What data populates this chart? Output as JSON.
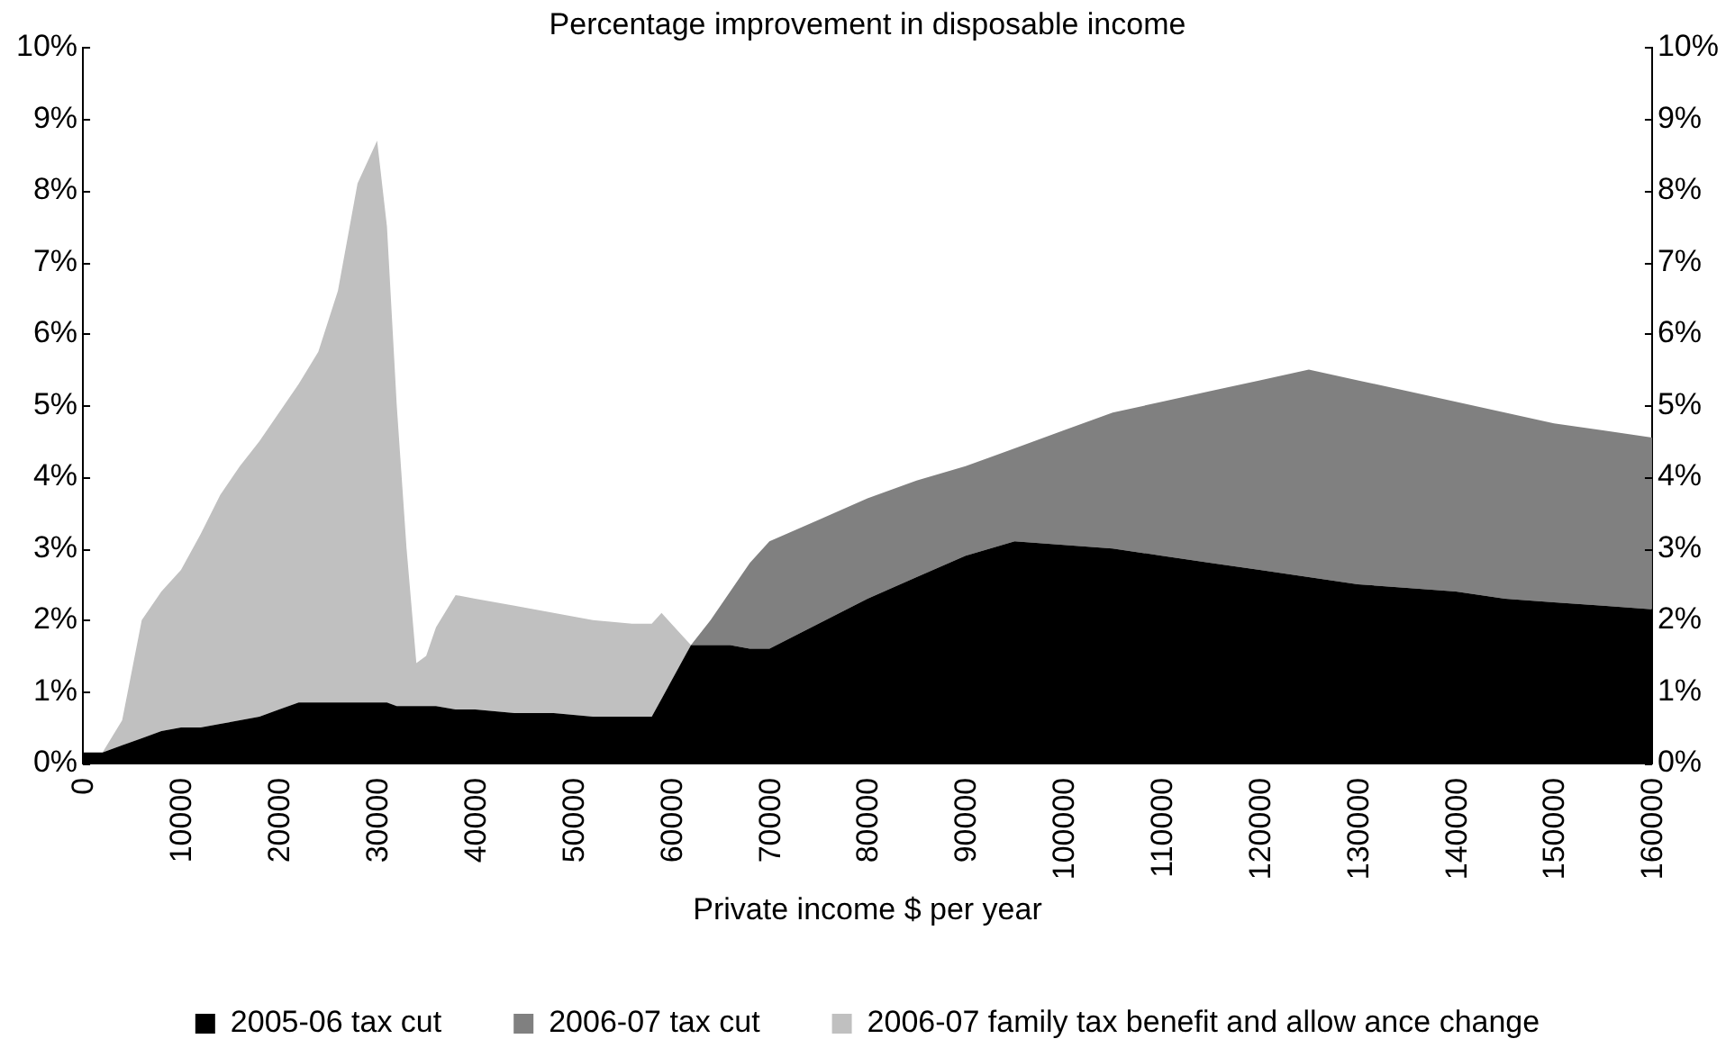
{
  "chart_data": {
    "type": "area",
    "stacked": true,
    "title": "Percentage improvement in disposable income",
    "xlabel": "Private income $ per year",
    "legend": "bottom",
    "x": [
      0,
      2000,
      4000,
      6000,
      8000,
      10000,
      12000,
      14000,
      16000,
      18000,
      20000,
      22000,
      24000,
      26000,
      28000,
      30000,
      31000,
      32000,
      33000,
      34000,
      35000,
      36000,
      38000,
      40000,
      44000,
      48000,
      52000,
      56000,
      58000,
      59000,
      60000,
      62000,
      64000,
      66000,
      68000,
      70000,
      75000,
      80000,
      85000,
      90000,
      95000,
      100000,
      105000,
      110000,
      115000,
      120000,
      125000,
      130000,
      135000,
      140000,
      145000,
      150000,
      155000,
      160000
    ],
    "series": [
      {
        "name": "2005-06 tax cut",
        "color": "#000000",
        "values": [
          0.15,
          0.15,
          0.25,
          0.35,
          0.45,
          0.5,
          0.5,
          0.55,
          0.6,
          0.65,
          0.75,
          0.85,
          0.85,
          0.85,
          0.85,
          0.85,
          0.85,
          0.8,
          0.8,
          0.8,
          0.8,
          0.8,
          0.75,
          0.75,
          0.7,
          0.7,
          0.65,
          0.65,
          0.65,
          0.9,
          1.15,
          1.65,
          1.65,
          1.65,
          1.6,
          1.6,
          1.95,
          2.3,
          2.6,
          2.9,
          3.1,
          3.05,
          3.0,
          2.9,
          2.8,
          2.7,
          2.6,
          2.5,
          2.45,
          2.4,
          2.3,
          2.25,
          2.2,
          2.15
        ]
      },
      {
        "name": "2006-07 tax cut",
        "color": "#808080",
        "values": [
          0,
          0,
          0,
          0,
          0,
          0,
          0,
          0,
          0,
          0,
          0,
          0,
          0,
          0,
          0,
          0,
          0,
          0,
          0,
          0,
          0,
          0,
          0,
          0,
          0,
          0,
          0,
          0,
          0,
          0,
          0,
          0,
          0.35,
          0.75,
          1.2,
          1.5,
          1.45,
          1.4,
          1.35,
          1.25,
          1.3,
          1.6,
          1.9,
          2.15,
          2.4,
          2.65,
          2.9,
          2.85,
          2.75,
          2.65,
          2.6,
          2.5,
          2.45,
          2.4
        ]
      },
      {
        "name": "2006-07 family tax benefit and allow ance change",
        "color": "#c0c0c0",
        "values": [
          0,
          0,
          0.35,
          1.65,
          1.95,
          2.2,
          2.7,
          3.2,
          3.55,
          3.85,
          4.15,
          4.45,
          4.9,
          5.75,
          7.25,
          7.85,
          6.65,
          4.2,
          2.2,
          0.6,
          0.7,
          1.1,
          1.6,
          1.55,
          1.5,
          1.4,
          1.35,
          1.3,
          1.3,
          1.2,
          0.8,
          0,
          null,
          null,
          null,
          null,
          null,
          null,
          null,
          null,
          null,
          null,
          null,
          null,
          null,
          null,
          null,
          null,
          null,
          null,
          null,
          null,
          null,
          null
        ]
      }
    ],
    "xlim": [
      0,
      160000
    ],
    "xticks": [
      0,
      10000,
      20000,
      30000,
      40000,
      50000,
      60000,
      70000,
      80000,
      90000,
      100000,
      110000,
      120000,
      130000,
      140000,
      150000,
      160000
    ],
    "ylim": [
      0,
      10
    ],
    "yticks": [
      {
        "value": 0,
        "label": "0%"
      },
      {
        "value": 1,
        "label": "1%"
      },
      {
        "value": 2,
        "label": "2%"
      },
      {
        "value": 3,
        "label": "3%"
      },
      {
        "value": 4,
        "label": "4%"
      },
      {
        "value": 5,
        "label": "5%"
      },
      {
        "value": 6,
        "label": "6%"
      },
      {
        "value": 7,
        "label": "7%"
      },
      {
        "value": 8,
        "label": "8%"
      },
      {
        "value": 9,
        "label": "9%"
      },
      {
        "value": 10,
        "label": "10%"
      }
    ],
    "y2lim": [
      0,
      10
    ],
    "y2ticks": [
      {
        "value": 0,
        "label": "0%"
      },
      {
        "value": 1,
        "label": "1%"
      },
      {
        "value": 2,
        "label": "2%"
      },
      {
        "value": 3,
        "label": "3%"
      },
      {
        "value": 4,
        "label": "4%"
      },
      {
        "value": 5,
        "label": "5%"
      },
      {
        "value": 6,
        "label": "6%"
      },
      {
        "value": 7,
        "label": "7%"
      },
      {
        "value": 8,
        "label": "8%"
      },
      {
        "value": 9,
        "label": "9%"
      },
      {
        "value": 10,
        "label": "10%"
      }
    ]
  }
}
